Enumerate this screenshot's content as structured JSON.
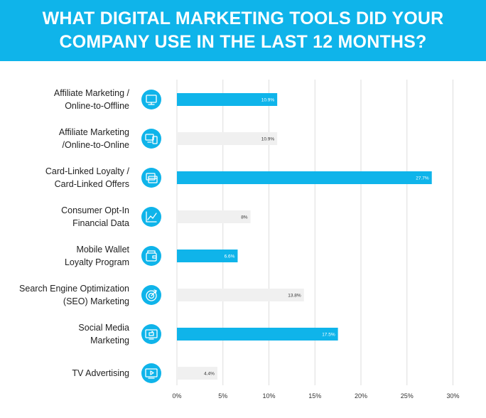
{
  "header": {
    "title_line1": "WHAT DIGITAL MARKETING TOOLS DID YOUR",
    "title_line2": "COMPANY USE IN THE LAST 12 MONTHS?"
  },
  "colors": {
    "accent": "#0fb4ea",
    "muted_bar": "#f0f0f0",
    "icon_circle": "#0fb4ea",
    "gridline": "#dddddd"
  },
  "chart_data": {
    "type": "bar",
    "orientation": "horizontal",
    "title": "WHAT DIGITAL MARKETING TOOLS DID YOUR COMPANY USE IN THE LAST 12 MONTHS?",
    "xlabel": "",
    "ylabel": "",
    "xlim": [
      0,
      30
    ],
    "ticks": [
      0,
      5,
      10,
      15,
      20,
      25,
      30
    ],
    "tick_labels": [
      "0%",
      "5%",
      "10%",
      "15%",
      "20%",
      "25%",
      "30%"
    ],
    "grid": true,
    "categories": [
      [
        "Affiliate Marketing /",
        "Online-to-Offline"
      ],
      [
        "Affiliate Marketing",
        "/Online-to-Online"
      ],
      [
        "Card-Linked Loyalty /",
        "Card-Linked Offers"
      ],
      [
        "Consumer Opt-In",
        "Financial Data"
      ],
      [
        "Mobile Wallet",
        "Loyalty Program"
      ],
      [
        "Search Engine Optimization",
        "(SEO) Marketing"
      ],
      [
        "Social Media",
        "Marketing"
      ],
      [
        "TV Advertising"
      ]
    ],
    "values": [
      10.9,
      10.9,
      27.7,
      8,
      6.6,
      13.8,
      17.5,
      4.4
    ],
    "value_labels": [
      "10.9%",
      "10.9%",
      "27.7%",
      "8%",
      "6.6%",
      "13.8%",
      "17.5%",
      "4.4%"
    ],
    "highlighted": [
      true,
      false,
      true,
      false,
      true,
      false,
      true,
      false
    ],
    "icons": [
      "monitor-icon",
      "devices-icon",
      "card-icon",
      "trend-chart-icon",
      "wallet-icon",
      "target-icon",
      "social-screen-icon",
      "tv-icon"
    ]
  }
}
